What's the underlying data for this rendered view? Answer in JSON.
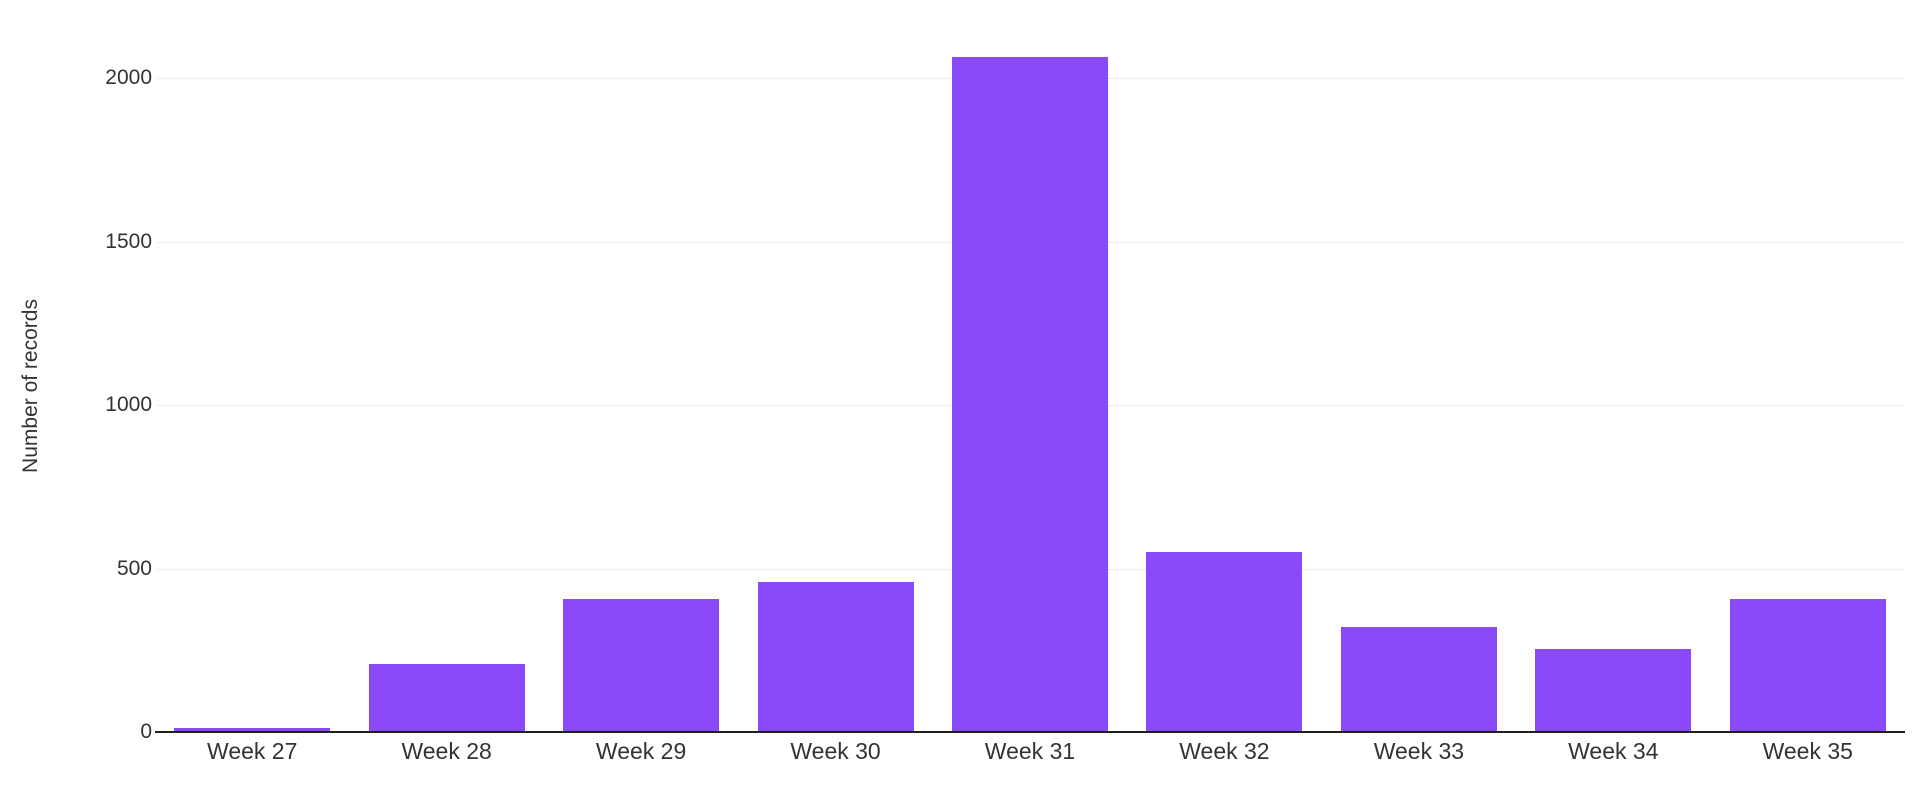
{
  "chart_data": {
    "type": "bar",
    "categories": [
      "Week 27",
      "Week 28",
      "Week 29",
      "Week 30",
      "Week 31",
      "Week 32",
      "Week 33",
      "Week 34",
      "Week 35"
    ],
    "values": [
      12,
      208,
      407,
      460,
      2064,
      549,
      322,
      254,
      406
    ],
    "title": "",
    "xlabel": "",
    "ylabel": "Number of records",
    "ylim": [
      0,
      2100
    ],
    "yticks": [
      0,
      500,
      1000,
      1500,
      2000
    ],
    "grid": "horizontal",
    "legend": "none",
    "colors": {
      "bar": "#8A4AFA",
      "gridline": "#ececec",
      "axis_line": "#1f1f1f",
      "text": "#333333",
      "background": "#ffffff"
    }
  }
}
